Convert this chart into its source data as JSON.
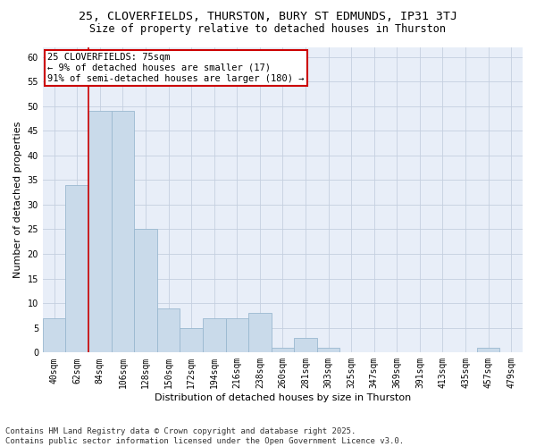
{
  "title1": "25, CLOVERFIELDS, THURSTON, BURY ST EDMUNDS, IP31 3TJ",
  "title2": "Size of property relative to detached houses in Thurston",
  "xlabel": "Distribution of detached houses by size in Thurston",
  "ylabel": "Number of detached properties",
  "categories": [
    "40sqm",
    "62sqm",
    "84sqm",
    "106sqm",
    "128sqm",
    "150sqm",
    "172sqm",
    "194sqm",
    "216sqm",
    "238sqm",
    "260sqm",
    "281sqm",
    "303sqm",
    "325sqm",
    "347sqm",
    "369sqm",
    "391sqm",
    "413sqm",
    "435sqm",
    "457sqm",
    "479sqm"
  ],
  "values": [
    7,
    34,
    49,
    49,
    25,
    9,
    5,
    7,
    7,
    8,
    1,
    3,
    1,
    0,
    0,
    0,
    0,
    0,
    0,
    1,
    0
  ],
  "bar_color": "#c9daea",
  "bar_edge_color": "#9ab8d0",
  "grid_color": "#c5cfe0",
  "background_color": "#e8eef8",
  "vline_color": "#cc0000",
  "annotation_text": "25 CLOVERFIELDS: 75sqm\n← 9% of detached houses are smaller (17)\n91% of semi-detached houses are larger (180) →",
  "annotation_box_color": "#cc0000",
  "ylim": [
    0,
    62
  ],
  "yticks": [
    0,
    5,
    10,
    15,
    20,
    25,
    30,
    35,
    40,
    45,
    50,
    55,
    60
  ],
  "footer": "Contains HM Land Registry data © Crown copyright and database right 2025.\nContains public sector information licensed under the Open Government Licence v3.0.",
  "title1_fontsize": 9.5,
  "title2_fontsize": 8.5,
  "axis_label_fontsize": 8,
  "tick_fontsize": 7,
  "annotation_fontsize": 7.5,
  "footer_fontsize": 6.5
}
